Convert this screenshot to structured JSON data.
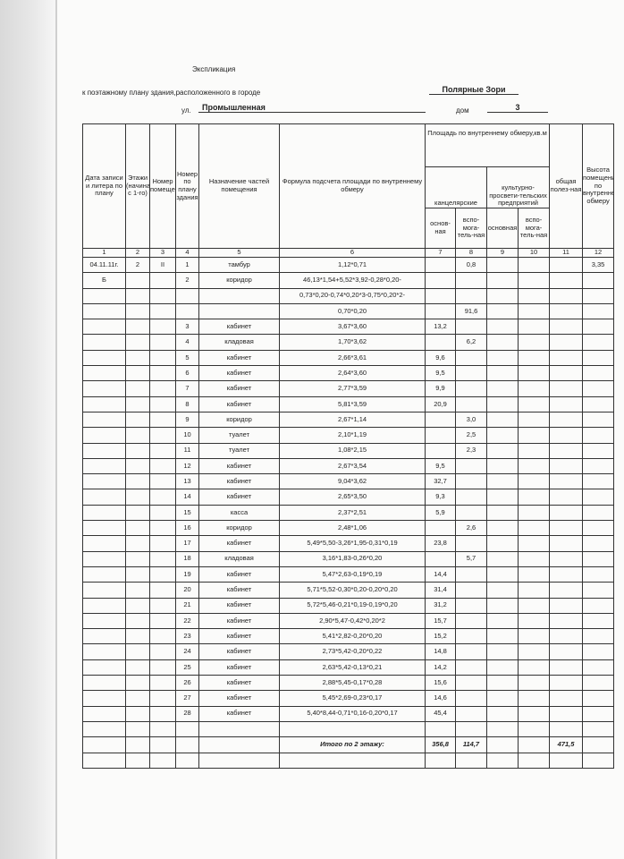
{
  "doc": {
    "title": "Экспликация",
    "line1": "к поэтажному плану здания,расположенного в городе",
    "city": "Полярные Зори",
    "street_label": "ул.",
    "street": "Промышленная",
    "house_label": "дом",
    "house": "3"
  },
  "headers": {
    "c1": "Дата записи и литера по плану",
    "c2": "Этажи (начиная с 1-го)",
    "c3": "Номер помещения",
    "c4": "Номер по плану здания",
    "c5": "Назначение частей помещения",
    "c6": "Формула подсчета площади по внутреннему обмеру",
    "area": "Площадь по внутреннему обмеру,кв.м",
    "office": "канцелярские",
    "culture": "культурно-просвети-тельских предприятий",
    "main1": "основ-ная",
    "aux1": "вспо-мога-тель-ная",
    "main2": "основная",
    "aux2": "вспо-мога-тель-ная",
    "c11": "общая полез-ная",
    "c12": "Высота помещения по внутреннему обмеру",
    "numbers": [
      "1",
      "2",
      "3",
      "4",
      "5",
      "6",
      "7",
      "8",
      "9",
      "10",
      "11",
      "12"
    ]
  },
  "rows": [
    [
      "04.11.11г.",
      "2",
      "II",
      "1",
      "тамбур",
      "1,12*0,71",
      "",
      "0,8",
      "",
      "",
      "",
      "3,35"
    ],
    [
      "Б",
      "",
      "",
      "2",
      "коридор",
      "46,13*1,54+5,52*3,92-0,28*0,20-",
      "",
      "",
      "",
      "",
      "",
      ""
    ],
    [
      "",
      "",
      "",
      "",
      "",
      "0,73*0,20-0,74*0,20*3-0,75*0,20*2-",
      "",
      "",
      "",
      "",
      "",
      ""
    ],
    [
      "",
      "",
      "",
      "",
      "",
      "0,70*0,20",
      "",
      "91,6",
      "",
      "",
      "",
      ""
    ],
    [
      "",
      "",
      "",
      "3",
      "кабинет",
      "3,67*3,60",
      "13,2",
      "",
      "",
      "",
      "",
      ""
    ],
    [
      "",
      "",
      "",
      "4",
      "кладовая",
      "1,70*3,62",
      "",
      "6,2",
      "",
      "",
      "",
      ""
    ],
    [
      "",
      "",
      "",
      "5",
      "кабинет",
      "2,66*3,61",
      "9,6",
      "",
      "",
      "",
      "",
      ""
    ],
    [
      "",
      "",
      "",
      "6",
      "кабинет",
      "2,64*3,60",
      "9,5",
      "",
      "",
      "",
      "",
      ""
    ],
    [
      "",
      "",
      "",
      "7",
      "кабинет",
      "2,77*3,59",
      "9,9",
      "",
      "",
      "",
      "",
      ""
    ],
    [
      "",
      "",
      "",
      "8",
      "кабинет",
      "5,81*3,59",
      "20,9",
      "",
      "",
      "",
      "",
      ""
    ],
    [
      "",
      "",
      "",
      "9",
      "коридор",
      "2,67*1,14",
      "",
      "3,0",
      "",
      "",
      "",
      ""
    ],
    [
      "",
      "",
      "",
      "10",
      "туалет",
      "2,10*1,19",
      "",
      "2,5",
      "",
      "",
      "",
      ""
    ],
    [
      "",
      "",
      "",
      "11",
      "туалет",
      "1,08*2,15",
      "",
      "2,3",
      "",
      "",
      "",
      ""
    ],
    [
      "",
      "",
      "",
      "12",
      "кабинет",
      "2,67*3,54",
      "9,5",
      "",
      "",
      "",
      "",
      ""
    ],
    [
      "",
      "",
      "",
      "13",
      "кабинет",
      "9,04*3,62",
      "32,7",
      "",
      "",
      "",
      "",
      ""
    ],
    [
      "",
      "",
      "",
      "14",
      "кабинет",
      "2,65*3,50",
      "9,3",
      "",
      "",
      "",
      "",
      ""
    ],
    [
      "",
      "",
      "",
      "15",
      "касса",
      "2,37*2,51",
      "5,9",
      "",
      "",
      "",
      "",
      ""
    ],
    [
      "",
      "",
      "",
      "16",
      "коридор",
      "2,48*1,06",
      "",
      "2,6",
      "",
      "",
      "",
      ""
    ],
    [
      "",
      "",
      "",
      "17",
      "кабинет",
      "5,49*5,50-3,26*1,95-0,31*0,19",
      "23,8",
      "",
      "",
      "",
      "",
      ""
    ],
    [
      "",
      "",
      "",
      "18",
      "кладовая",
      "3,16*1,83-0,26*0,20",
      "",
      "5,7",
      "",
      "",
      "",
      ""
    ],
    [
      "",
      "",
      "",
      "19",
      "кабинет",
      "5,47*2,63-0,19*0,19",
      "14,4",
      "",
      "",
      "",
      "",
      ""
    ],
    [
      "",
      "",
      "",
      "20",
      "кабинет",
      "5,71*5,52-0,30*0,20-0,20*0,20",
      "31,4",
      "",
      "",
      "",
      "",
      ""
    ],
    [
      "",
      "",
      "",
      "21",
      "кабинет",
      "5,72*5,46-0,21*0,19-0,19*0,20",
      "31,2",
      "",
      "",
      "",
      "",
      ""
    ],
    [
      "",
      "",
      "",
      "22",
      "кабинет",
      "2,90*5,47-0,42*0,20*2",
      "15,7",
      "",
      "",
      "",
      "",
      ""
    ],
    [
      "",
      "",
      "",
      "23",
      "кабинет",
      "5,41*2,82-0,20*0,20",
      "15,2",
      "",
      "",
      "",
      "",
      ""
    ],
    [
      "",
      "",
      "",
      "24",
      "кабинет",
      "2,73*5,42-0,20*0,22",
      "14,8",
      "",
      "",
      "",
      "",
      ""
    ],
    [
      "",
      "",
      "",
      "25",
      "кабинет",
      "2,63*5,42-0,13*0,21",
      "14,2",
      "",
      "",
      "",
      "",
      ""
    ],
    [
      "",
      "",
      "",
      "26",
      "кабинет",
      "2,88*5,45-0,17*0,28",
      "15,6",
      "",
      "",
      "",
      "",
      ""
    ],
    [
      "",
      "",
      "",
      "27",
      "кабинет",
      "5,45*2,69-0,23*0,17",
      "14,6",
      "",
      "",
      "",
      "",
      ""
    ],
    [
      "",
      "",
      "",
      "28",
      "кабинет",
      "5,40*8,44-0,71*0,16-0,20*0,17",
      "45,4",
      "",
      "",
      "",
      "",
      ""
    ],
    [
      "",
      "",
      "",
      "",
      "",
      "",
      "",
      "",
      "",
      "",
      "",
      ""
    ]
  ],
  "total": {
    "label": "Итого по 2 этажу:",
    "main": "356,8",
    "aux": "114,7",
    "useful": "471,5"
  }
}
